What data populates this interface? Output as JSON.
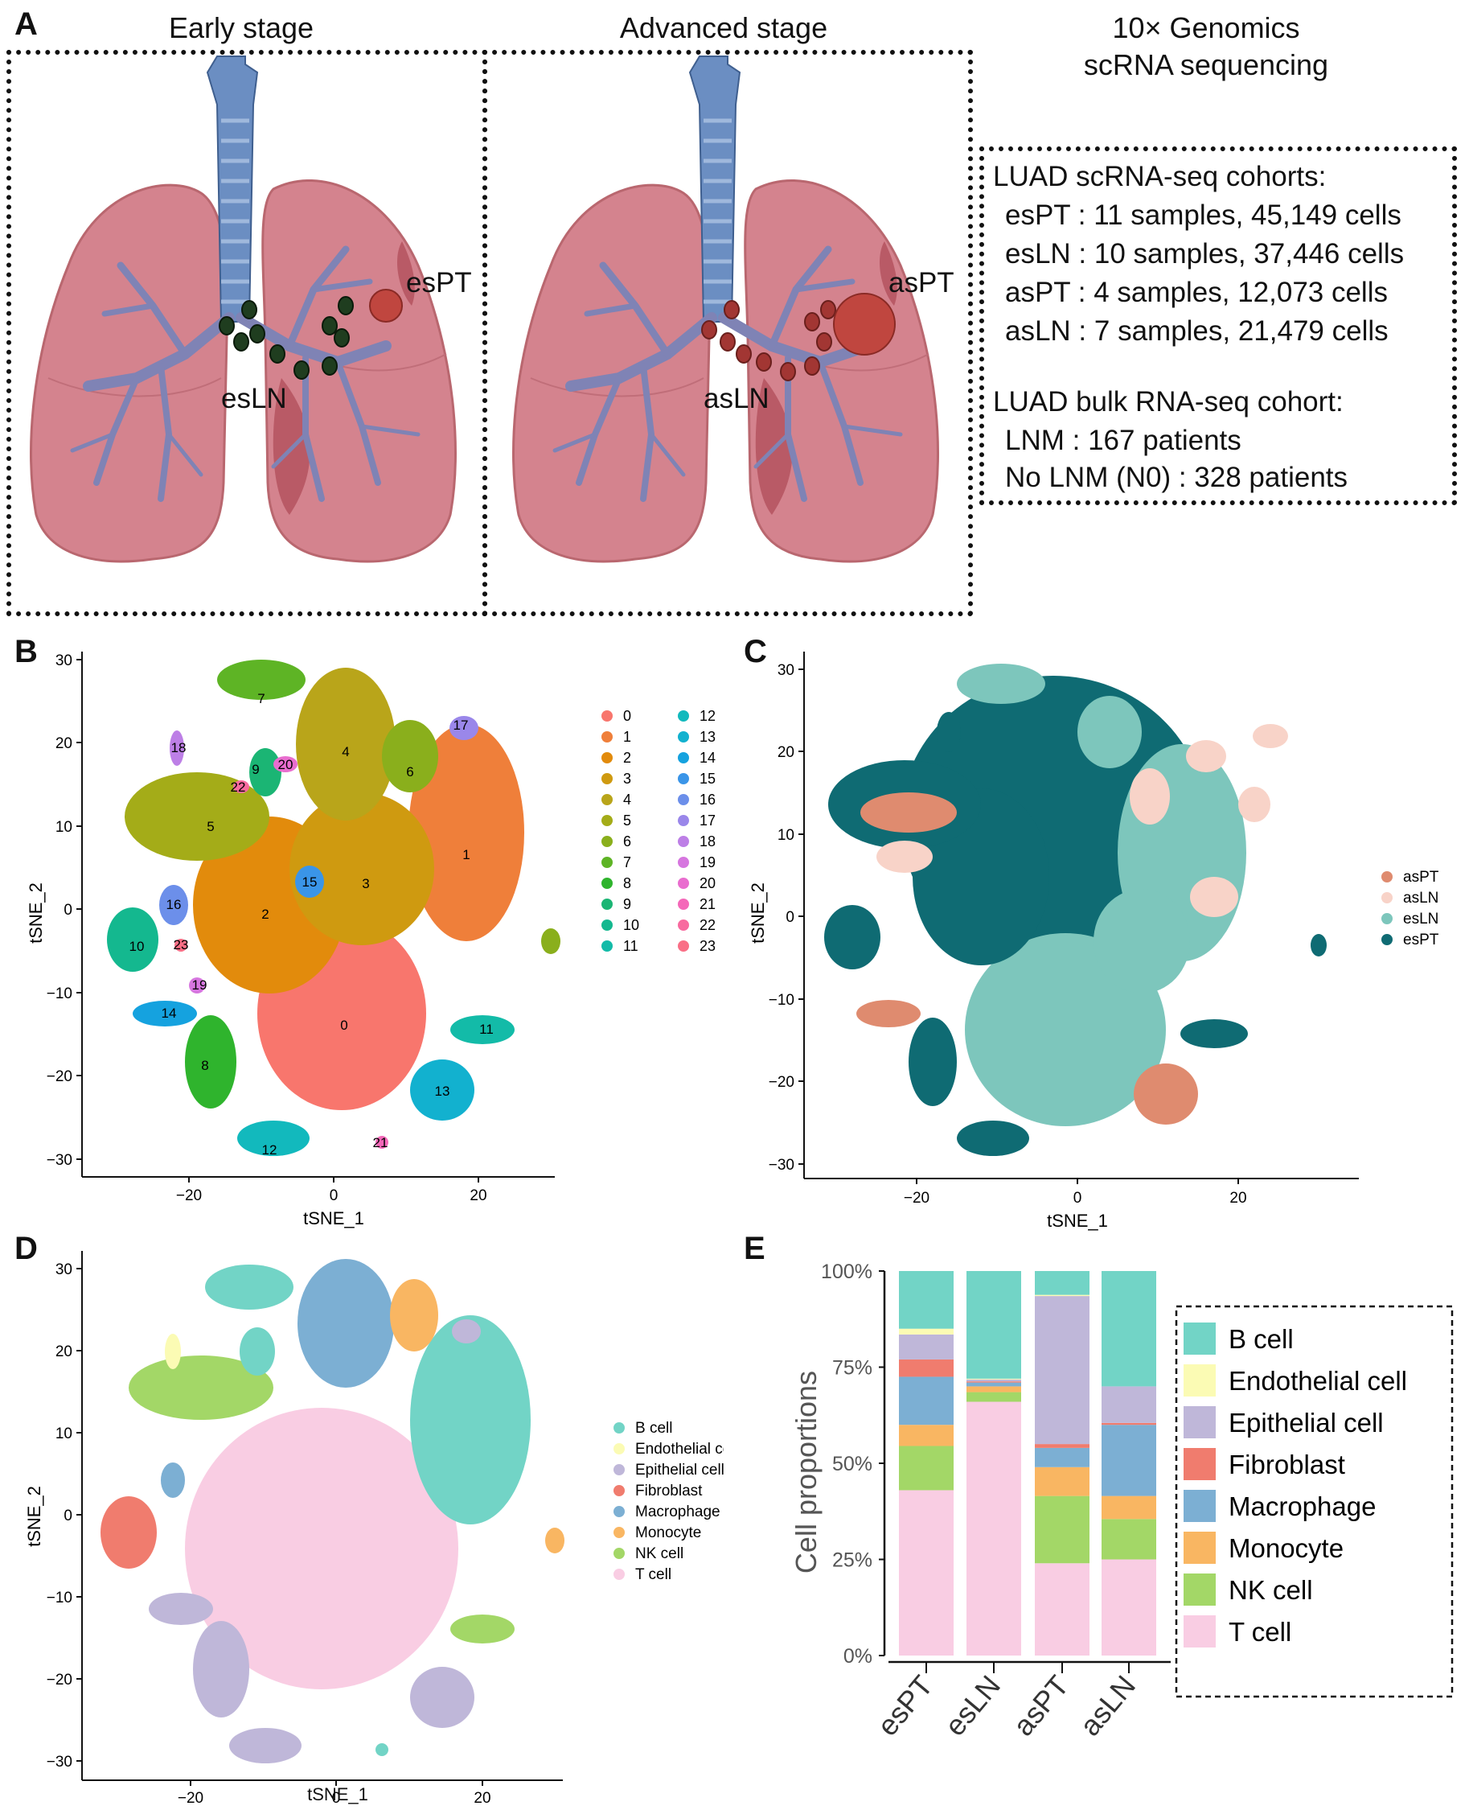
{
  "panel_labels": {
    "a": "A",
    "b": "B",
    "c": "C",
    "d": "D",
    "e": "E"
  },
  "panel_a": {
    "early_stage": "Early stage",
    "advanced_stage": "Advanced stage",
    "tech_line1": "10× Genomics",
    "tech_line2": "scRNA sequencing",
    "labels": {
      "esPT": "esPT",
      "esLN": "esLN",
      "asPT": "asPT",
      "asLN": "asLN"
    },
    "cohort_lines": [
      "LUAD scRNA-seq cohorts:",
      "esPT : 11 samples, 45,149 cells",
      "esLN : 10 samples, 37,446 cells",
      "asPT : 4 samples, 12,073 cells",
      "asLN : 7 samples, 21,479 cells",
      "LUAD bulk RNA-seq cohort:",
      "LNM : 167 patients",
      "No LNM (N0) : 328 patients"
    ],
    "colors": {
      "lung": "#d4838e",
      "airway": "#6b8ec2",
      "node_early": "#1f3d1f",
      "node_advanced": "#a23633",
      "tumor": "#c0463f"
    }
  },
  "panel_b": {
    "xlabel": "tSNE_1",
    "ylabel": "tSNE_2",
    "xticks": [
      "−20",
      "0",
      "20"
    ],
    "yticks": [
      "30",
      "20",
      "10",
      "0",
      "−10",
      "−20",
      "−30"
    ],
    "clusters": [
      {
        "id": "0",
        "color": "#f8766d"
      },
      {
        "id": "1",
        "color": "#ef7f3a"
      },
      {
        "id": "2",
        "color": "#e28b0c"
      },
      {
        "id": "3",
        "color": "#cf9a10"
      },
      {
        "id": "4",
        "color": "#b9a51a"
      },
      {
        "id": "5",
        "color": "#a4ac18"
      },
      {
        "id": "6",
        "color": "#8aaf1c"
      },
      {
        "id": "7",
        "color": "#5eb425"
      },
      {
        "id": "8",
        "color": "#2fb42d"
      },
      {
        "id": "9",
        "color": "#1bb574"
      },
      {
        "id": "10",
        "color": "#14b88f"
      },
      {
        "id": "11",
        "color": "#13bba8"
      },
      {
        "id": "12",
        "color": "#12b9bd"
      },
      {
        "id": "13",
        "color": "#12b1cf"
      },
      {
        "id": "14",
        "color": "#15a2df"
      },
      {
        "id": "15",
        "color": "#3a95e8"
      },
      {
        "id": "16",
        "color": "#6c8fea"
      },
      {
        "id": "17",
        "color": "#9a87ea"
      },
      {
        "id": "18",
        "color": "#bd7fe6"
      },
      {
        "id": "19",
        "color": "#d676df"
      },
      {
        "id": "20",
        "color": "#e96dcf"
      },
      {
        "id": "21",
        "color": "#f468b9"
      },
      {
        "id": "22",
        "color": "#f86a9f"
      },
      {
        "id": "23",
        "color": "#f96f86"
      }
    ]
  },
  "panel_c": {
    "xlabel": "tSNE_1",
    "ylabel": "tSNE_2",
    "xticks": [
      "−20",
      "0",
      "20"
    ],
    "yticks": [
      "30",
      "20",
      "10",
      "0",
      "−10",
      "−20",
      "−30"
    ],
    "groups": [
      {
        "name": "asPT",
        "color": "#df8b6f"
      },
      {
        "name": "asLN",
        "color": "#f8d3c8"
      },
      {
        "name": "esLN",
        "color": "#7dc6bc"
      },
      {
        "name": "esPT",
        "color": "#0f6b73"
      }
    ]
  },
  "panel_d": {
    "xlabel": "tSNE_1",
    "ylabel": "tSNE_2",
    "xticks": [
      "−20",
      "0",
      "20"
    ],
    "yticks": [
      "30",
      "20",
      "10",
      "0",
      "−10",
      "−20",
      "−30"
    ],
    "cell_types": [
      {
        "name": "B cell",
        "color": "#72d4c6"
      },
      {
        "name": "Endothelial cell",
        "color": "#fbfbb4"
      },
      {
        "name": "Epithelial cell",
        "color": "#bfb7d9"
      },
      {
        "name": "Fibroblast",
        "color": "#f07c6e"
      },
      {
        "name": "Macrophage",
        "color": "#7cafd3"
      },
      {
        "name": "Monocyte",
        "color": "#f9b662"
      },
      {
        "name": "NK cell",
        "color": "#a3d767"
      },
      {
        "name": "T cell",
        "color": "#f9cde3"
      }
    ]
  },
  "chart_data": {
    "type": "bar",
    "stacked": true,
    "title": "",
    "xlabel": "",
    "ylabel": "Cell proportions",
    "ylim": [
      0,
      100
    ],
    "yticks": [
      "0%",
      "25%",
      "50%",
      "75%",
      "100%"
    ],
    "categories": [
      "esPT",
      "esLN",
      "asPT",
      "asLN"
    ],
    "legend": "right, dashed box",
    "series": [
      {
        "name": "T cell",
        "color": "#f9cde3",
        "values": [
          43,
          66,
          24,
          25
        ]
      },
      {
        "name": "NK cell",
        "color": "#a3d767",
        "values": [
          11.5,
          2.5,
          17.5,
          10.5
        ]
      },
      {
        "name": "Monocyte",
        "color": "#f9b662",
        "values": [
          5.5,
          1.5,
          7.5,
          6
        ]
      },
      {
        "name": "Macrophage",
        "color": "#7cafd3",
        "values": [
          12.5,
          1,
          5,
          18.5
        ]
      },
      {
        "name": "Fibroblast",
        "color": "#f07c6e",
        "values": [
          4.5,
          0.3,
          1,
          0.5
        ]
      },
      {
        "name": "Epithelial cell",
        "color": "#bfb7d9",
        "values": [
          6.5,
          0.5,
          38.5,
          9.5
        ]
      },
      {
        "name": "Endothelial cell",
        "color": "#fbfbb4",
        "values": [
          1.5,
          0.2,
          0.3,
          0
        ]
      },
      {
        "name": "B cell",
        "color": "#72d4c6",
        "values": [
          15,
          28,
          6.2,
          30
        ]
      }
    ]
  }
}
